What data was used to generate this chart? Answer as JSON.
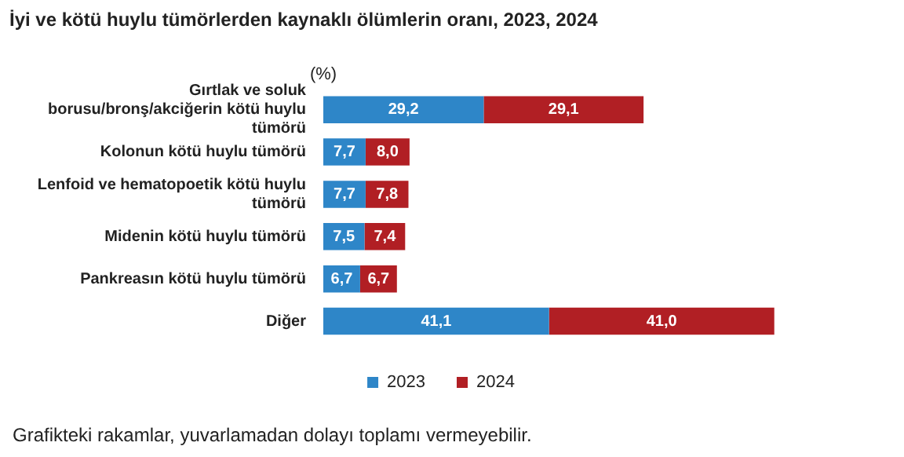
{
  "chart_data": {
    "type": "bar",
    "orientation": "horizontal",
    "stacked": true,
    "title": "İyi ve kötü huylu tümörlerden kaynaklı ölümlerin oranı, 2023, 2024",
    "categories": [
      "Gırtlak ve soluk borusu/bronş/akciğerin kötü huylu tümörü",
      "Kolonun kötü huylu tümörü",
      "Lenfoid ve hematopoetik kötü huylu tümörü",
      "Midenin kötü huylu tümörü",
      "Pankreasın kötü huylu tümörü",
      "Diğer"
    ],
    "series": [
      {
        "name": "2023",
        "color": "#2e86c8",
        "values": [
          29.2,
          7.7,
          7.7,
          7.5,
          6.7,
          41.1
        ],
        "value_labels": [
          "29,2",
          "7,7",
          "7,7",
          "7,5",
          "6,7",
          "41,1"
        ]
      },
      {
        "name": "2024",
        "color": "#b11f24",
        "values": [
          29.1,
          8.0,
          7.8,
          7.4,
          6.7,
          41.0
        ],
        "value_labels": [
          "29,1",
          "8,0",
          "7,8",
          "7,4",
          "6,7",
          "41,0"
        ]
      }
    ],
    "legend": "bottom",
    "tick_labels": "y",
    "annotations": [
      "(%)",
      "Grafikteki rakamlar, yuvarlamadan dolayı toplamı vermeyebilir."
    ]
  }
}
